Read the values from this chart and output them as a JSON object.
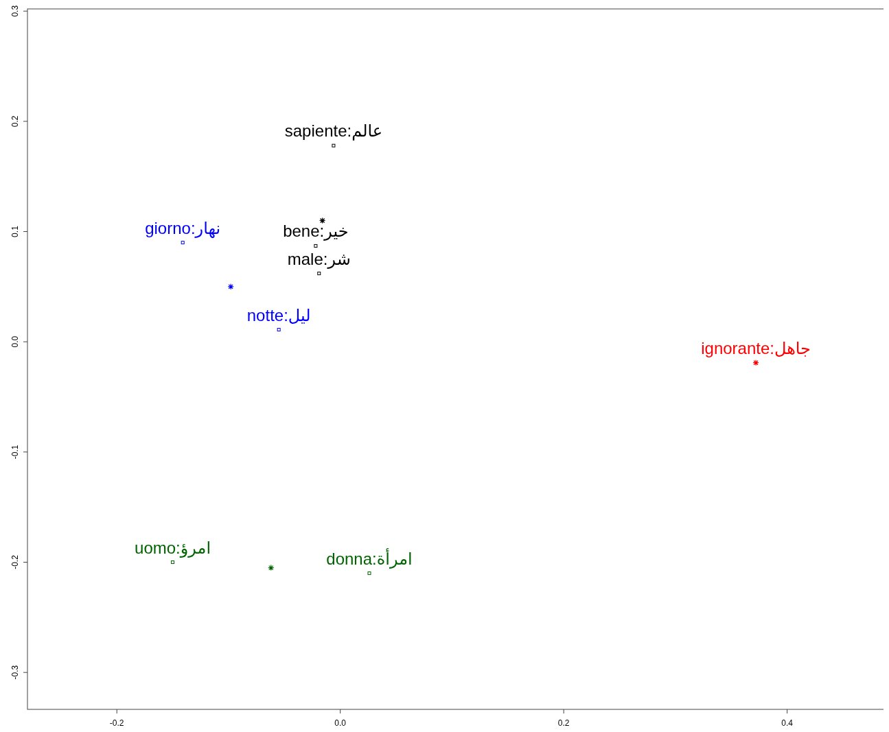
{
  "chart_data": {
    "type": "scatter",
    "xlim": [
      -0.28,
      0.493
    ],
    "ylim": [
      -0.3335,
      0.302
    ],
    "xticks": [
      -0.2,
      {
        "value": 0,
        "label": "0.0"
      },
      0.2,
      0.4
    ],
    "yticks": [
      -0.3,
      -0.2,
      -0.1,
      {
        "value": 0,
        "label": "0.0"
      },
      0.1,
      0.2,
      0.3
    ],
    "grid": false,
    "series": [
      {
        "color": "#000000",
        "marker": "square",
        "x": [
          -0.006,
          -0.022,
          -0.019
        ],
        "values": [
          0.178,
          0.087,
          0.062
        ],
        "value_labels": [
          "sapiente:عالم",
          "bene:خير",
          "male:شر"
        ]
      },
      {
        "color": "#000000",
        "marker": "cross",
        "x": [
          -0.016
        ],
        "values": [
          0.11
        ]
      },
      {
        "color": "#0000ff",
        "marker": "square",
        "x": [
          -0.141,
          -0.055
        ],
        "values": [
          0.09,
          0.011
        ],
        "value_labels": [
          "giorno:نهار",
          "notte:ليل"
        ]
      },
      {
        "color": "#0000ff",
        "marker": "cross",
        "x": [
          -0.098
        ],
        "values": [
          0.05
        ]
      },
      {
        "color": "#006400",
        "marker": "square",
        "x": [
          -0.15,
          0.026
        ],
        "values": [
          -0.2,
          -0.21
        ],
        "value_labels": [
          "uomo:امرؤ",
          "donna:امرأة"
        ]
      },
      {
        "color": "#006400",
        "marker": "cross",
        "x": [
          -0.062
        ],
        "values": [
          -0.205
        ]
      },
      {
        "color": "#ff0000",
        "marker": "cross",
        "x": [
          0.372
        ],
        "values": [
          -0.019
        ],
        "value_labels": [
          "ignorante:جاهل"
        ]
      }
    ]
  }
}
